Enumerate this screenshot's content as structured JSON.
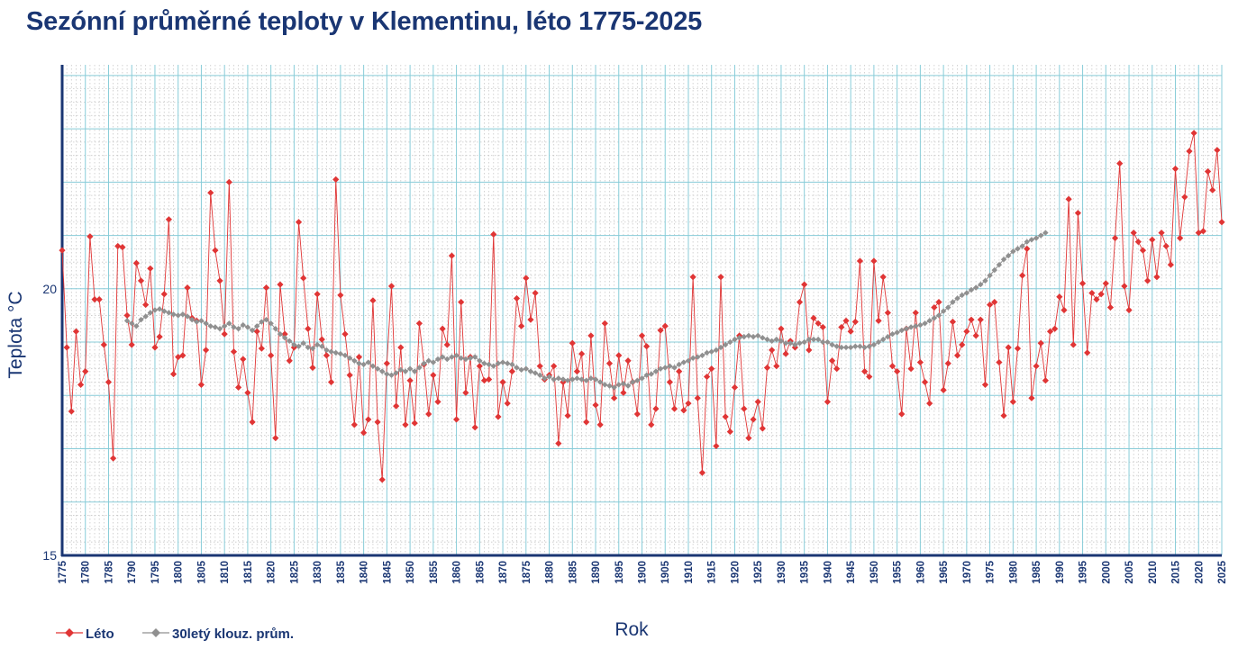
{
  "title": "Sezónní průměrné teploty v Klementinu, léto 1775-2025",
  "chart_data": {
    "type": "line",
    "title": "Sezónní průměrné teploty v Klementinu, léto 1775-2025",
    "xlabel": "Rok",
    "ylabel": "Teplota  °C",
    "xlim": [
      1775,
      2025
    ],
    "ylim": [
      15,
      24.2
    ],
    "x_tick_step": 5,
    "y_ticks": [
      15,
      20
    ],
    "y_gridlines": [
      15,
      16,
      17,
      18,
      19,
      20,
      21,
      22,
      23,
      24
    ],
    "colors": {
      "summer": "#e03535",
      "moving_average": "#909090",
      "grid_major": "#88ccd8",
      "grid_minor": "#c8c8c8",
      "axis": "#1a3673",
      "text": "#1a3673"
    },
    "series": [
      {
        "name": "Léto",
        "start_year": 1775,
        "values": [
          20.72,
          18.9,
          17.7,
          19.2,
          18.2,
          18.45,
          20.98,
          19.8,
          19.8,
          18.95,
          18.25,
          16.82,
          20.8,
          20.78,
          19.5,
          18.95,
          20.48,
          20.15,
          19.7,
          20.38,
          18.9,
          19.1,
          19.9,
          21.3,
          18.4,
          18.72,
          18.75,
          20.02,
          19.45,
          19.4,
          18.2,
          18.85,
          21.8,
          20.72,
          20.15,
          19.15,
          22.0,
          18.82,
          18.15,
          18.68,
          18.05,
          17.5,
          19.2,
          18.88,
          20.02,
          18.75,
          17.2,
          20.08,
          19.15,
          18.65,
          18.9,
          21.25,
          20.2,
          19.25,
          18.52,
          19.9,
          19.05,
          18.75,
          18.25,
          22.05,
          19.88,
          19.15,
          18.38,
          17.45,
          18.72,
          17.3,
          17.55,
          19.78,
          17.5,
          16.42,
          18.6,
          20.05,
          17.8,
          18.9,
          17.45,
          18.28,
          17.48,
          19.35,
          18.58,
          17.65,
          18.38,
          17.88,
          19.25,
          18.95,
          20.62,
          17.55,
          19.75,
          18.05,
          18.72,
          17.4,
          18.55,
          18.28,
          18.3,
          21.02,
          17.6,
          18.25,
          17.85,
          18.45,
          19.82,
          19.3,
          20.2,
          19.42,
          19.92,
          18.55,
          18.3,
          18.38,
          18.55,
          17.1,
          18.25,
          17.62,
          18.98,
          18.45,
          18.78,
          17.5,
          19.12,
          17.82,
          17.45,
          19.35,
          18.6,
          17.95,
          18.75,
          18.05,
          18.65,
          18.25,
          17.65,
          19.12,
          18.92,
          17.45,
          17.75,
          19.22,
          19.3,
          18.25,
          17.75,
          18.45,
          17.72,
          17.85,
          20.22,
          17.95,
          16.55,
          18.35,
          18.5,
          17.05,
          20.22,
          17.6,
          17.32,
          18.15,
          19.12,
          17.75,
          17.2,
          17.55,
          17.88,
          17.38,
          18.52,
          18.85,
          18.55,
          19.25,
          18.78,
          19.02,
          18.9,
          19.75,
          20.08,
          18.85,
          19.45,
          19.35,
          19.28,
          17.88,
          18.65,
          18.5,
          19.28,
          19.4,
          19.2,
          19.38,
          20.52,
          18.45,
          18.35,
          20.52,
          19.4,
          20.22,
          19.55,
          18.55,
          18.45,
          17.65,
          19.25,
          18.5,
          19.55,
          18.62,
          18.25,
          17.85,
          19.65,
          19.75,
          18.1,
          18.6,
          19.38,
          18.75,
          18.95,
          19.2,
          19.42,
          19.12,
          19.42,
          18.2,
          19.7,
          19.75,
          18.62,
          17.62,
          18.9,
          17.88,
          18.88,
          20.25,
          20.75,
          17.95,
          18.55,
          18.98,
          18.28,
          19.2,
          19.25,
          19.85,
          19.6,
          21.68,
          18.95,
          21.42,
          20.1,
          18.8,
          19.92,
          19.8,
          19.9,
          20.1,
          19.65,
          20.95,
          22.35,
          20.05,
          19.6,
          21.05,
          20.88,
          20.72,
          20.15,
          20.92,
          20.22,
          21.05,
          20.8,
          20.45,
          22.25,
          20.95,
          21.72,
          22.58,
          22.92,
          21.05,
          21.08,
          22.2,
          21.85,
          22.6,
          21.25
        ]
      },
      {
        "name": "30letý klouz. prům.",
        "start_year": 1789,
        "values": [
          19.4,
          19.35,
          19.3,
          19.42,
          19.48,
          19.55,
          19.6,
          19.62,
          19.58,
          19.55,
          19.52,
          19.5,
          19.52,
          19.48,
          19.42,
          19.38,
          19.4,
          19.35,
          19.3,
          19.28,
          19.25,
          19.3,
          19.35,
          19.28,
          19.25,
          19.32,
          19.28,
          19.22,
          19.3,
          19.38,
          19.42,
          19.35,
          19.25,
          19.15,
          19.08,
          19.02,
          18.95,
          18.92,
          18.98,
          18.9,
          18.88,
          18.95,
          18.92,
          18.85,
          18.82,
          18.8,
          18.78,
          18.75,
          18.7,
          18.65,
          18.6,
          18.58,
          18.62,
          18.55,
          18.5,
          18.45,
          18.4,
          18.38,
          18.42,
          18.48,
          18.45,
          18.5,
          18.45,
          18.52,
          18.6,
          18.65,
          18.62,
          18.68,
          18.72,
          18.68,
          18.72,
          18.75,
          18.7,
          18.68,
          18.7,
          18.72,
          18.65,
          18.6,
          18.58,
          18.55,
          18.6,
          18.62,
          18.6,
          18.58,
          18.52,
          18.48,
          18.5,
          18.45,
          18.42,
          18.38,
          18.32,
          18.35,
          18.3,
          18.32,
          18.3,
          18.28,
          18.3,
          18.32,
          18.3,
          18.28,
          18.32,
          18.3,
          18.25,
          18.2,
          18.18,
          18.15,
          18.2,
          18.22,
          18.18,
          18.25,
          18.28,
          18.32,
          18.38,
          18.4,
          18.45,
          18.5,
          18.52,
          18.55,
          18.52,
          18.58,
          18.62,
          18.65,
          18.7,
          18.72,
          18.75,
          18.8,
          18.82,
          18.85,
          18.9,
          18.95,
          19.0,
          19.05,
          19.08,
          19.1,
          19.12,
          19.1,
          19.12,
          19.08,
          19.05,
          19.02,
          19.05,
          19.02,
          18.98,
          18.98,
          18.95,
          18.98,
          19.0,
          19.05,
          19.05,
          19.05,
          19.0,
          19.0,
          18.95,
          18.92,
          18.9,
          18.9,
          18.9,
          18.92,
          18.92,
          18.9,
          18.92,
          18.95,
          19.0,
          19.05,
          19.1,
          19.15,
          19.18,
          19.22,
          19.25,
          19.28,
          19.3,
          19.32,
          19.35,
          19.4,
          19.45,
          19.5,
          19.58,
          19.65,
          19.75,
          19.82,
          19.88,
          19.92,
          19.98,
          20.02,
          20.08,
          20.15,
          20.25,
          20.35,
          20.45,
          20.55,
          20.62,
          20.7,
          20.75,
          20.8,
          20.88,
          20.92,
          20.95,
          21.0,
          21.05
        ]
      }
    ]
  },
  "legend": {
    "items": [
      {
        "label": "Léto",
        "color": "#e03535",
        "marker": "diamond"
      },
      {
        "label": "30letý klouz. prům.",
        "color": "#909090",
        "marker": "diamond"
      }
    ]
  }
}
